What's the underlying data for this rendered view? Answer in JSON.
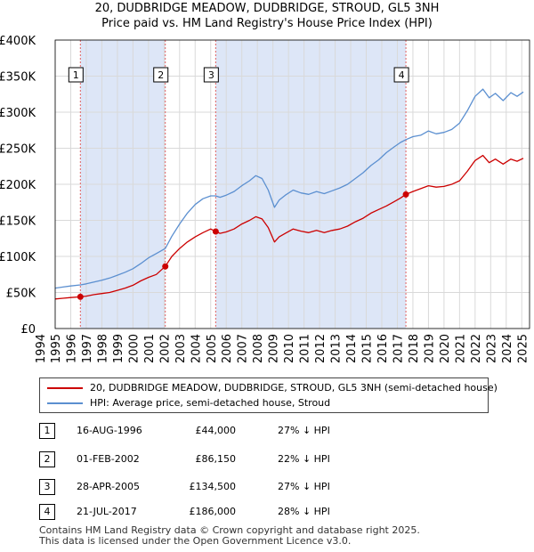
{
  "title_line1": "20, DUDBRIDGE MEADOW, DUDBRIDGE, STROUD, GL5 3NH",
  "title_line2": "Price paid vs. HM Land Registry's House Price Index (HPI)",
  "colors": {
    "property": "#cc0000",
    "hpi": "#5b8fd0",
    "shade": "#dde6f7",
    "marker_line": "#e06060"
  },
  "chart_data": {
    "type": "line",
    "title": "20, DUDBRIDGE MEADOW, DUDBRIDGE, STROUD, GL5 3NH — Price paid vs. HM Land Registry's House Price Index (HPI)",
    "xlim": [
      1995,
      2025.5
    ],
    "ylim": [
      0,
      400000
    ],
    "y_ticks": [
      0,
      50000,
      100000,
      150000,
      200000,
      250000,
      300000,
      350000,
      400000
    ],
    "y_tick_labels": [
      "£0",
      "£50K",
      "£100K",
      "£150K",
      "£200K",
      "£250K",
      "£300K",
      "£350K",
      "£400K"
    ],
    "x_ticks": [
      1994,
      1995,
      1996,
      1997,
      1998,
      1999,
      2000,
      2001,
      2002,
      2003,
      2004,
      2005,
      2006,
      2007,
      2008,
      2009,
      2010,
      2011,
      2012,
      2013,
      2014,
      2015,
      2016,
      2017,
      2018,
      2019,
      2020,
      2021,
      2022,
      2023,
      2024,
      2025
    ],
    "x_tick_labels": [
      "1994",
      "1995",
      "1996",
      "1997",
      "1998",
      "1999",
      "2000",
      "2001",
      "2002",
      "2003",
      "2004",
      "2005",
      "2006",
      "2007",
      "2008",
      "2009",
      "2010",
      "2011",
      "2012",
      "2013",
      "2014",
      "2015",
      "2016",
      "2017",
      "2018",
      "2019",
      "2020",
      "2021",
      "2022",
      "2023",
      "2024",
      "2025"
    ],
    "grid": true,
    "shaded_periods": [
      [
        1996.62,
        2002.08
      ],
      [
        2005.32,
        2017.55
      ]
    ],
    "series": [
      {
        "name": "20, DUDBRIDGE MEADOW, DUDBRIDGE, STROUD, GL5 3NH (semi-detached house)",
        "color": "#cc0000",
        "x": [
          1995.0,
          1995.5,
          1996.0,
          1996.62,
          1997.0,
          1997.5,
          1998.0,
          1998.5,
          1999.0,
          1999.5,
          2000.0,
          2000.5,
          2001.0,
          2001.5,
          2002.08,
          2002.5,
          2003.0,
          2003.5,
          2004.0,
          2004.5,
          2005.0,
          2005.32,
          2005.6,
          2006.0,
          2006.5,
          2007.0,
          2007.5,
          2007.9,
          2008.3,
          2008.7,
          2009.1,
          2009.4,
          2009.8,
          2010.3,
          2010.8,
          2011.3,
          2011.8,
          2012.3,
          2012.8,
          2013.3,
          2013.8,
          2014.3,
          2014.8,
          2015.3,
          2015.8,
          2016.3,
          2016.8,
          2017.2,
          2017.55,
          2018.0,
          2018.5,
          2019.0,
          2019.5,
          2020.0,
          2020.5,
          2021.0,
          2021.5,
          2022.0,
          2022.5,
          2022.9,
          2023.3,
          2023.8,
          2024.3,
          2024.7,
          2025.1
        ],
        "values": [
          41000,
          42000,
          43000,
          44000,
          45000,
          47000,
          48500,
          50000,
          53000,
          56000,
          60000,
          66000,
          71000,
          75000,
          86150,
          100000,
          111000,
          120000,
          127000,
          133000,
          138000,
          134500,
          132000,
          134000,
          138000,
          145000,
          150000,
          155000,
          152000,
          140000,
          120000,
          127000,
          132000,
          138000,
          135000,
          133000,
          136000,
          133000,
          136000,
          138000,
          142000,
          148000,
          153000,
          160000,
          165000,
          170000,
          176000,
          181000,
          186000,
          190000,
          194000,
          198000,
          196000,
          197000,
          200000,
          205000,
          218000,
          233000,
          240000,
          230000,
          235000,
          228000,
          235000,
          232000,
          236000
        ]
      },
      {
        "name": "HPI: Average price, semi-detached house, Stroud",
        "color": "#5b8fd0",
        "x": [
          1995.0,
          1995.5,
          1996.0,
          1996.62,
          1997.0,
          1997.5,
          1998.0,
          1998.5,
          1999.0,
          1999.5,
          2000.0,
          2000.5,
          2001.0,
          2001.5,
          2002.08,
          2002.5,
          2003.0,
          2003.5,
          2004.0,
          2004.5,
          2005.0,
          2005.32,
          2005.6,
          2006.0,
          2006.5,
          2007.0,
          2007.5,
          2007.9,
          2008.3,
          2008.7,
          2009.1,
          2009.4,
          2009.8,
          2010.3,
          2010.8,
          2011.3,
          2011.8,
          2012.3,
          2012.8,
          2013.3,
          2013.8,
          2014.3,
          2014.8,
          2015.3,
          2015.8,
          2016.3,
          2016.8,
          2017.2,
          2017.55,
          2018.0,
          2018.5,
          2019.0,
          2019.5,
          2020.0,
          2020.5,
          2021.0,
          2021.5,
          2022.0,
          2022.5,
          2022.9,
          2023.3,
          2023.8,
          2024.3,
          2024.7,
          2025.1
        ],
        "values": [
          56000,
          57500,
          59000,
          60500,
          62000,
          64500,
          67000,
          70000,
          74000,
          78000,
          83000,
          90000,
          98000,
          104000,
          111000,
          128000,
          145000,
          160000,
          172000,
          180000,
          184000,
          184000,
          182000,
          185000,
          190000,
          198000,
          205000,
          212000,
          208000,
          192000,
          168000,
          178000,
          185000,
          192000,
          188000,
          186000,
          190000,
          187000,
          191000,
          195000,
          200000,
          208000,
          216000,
          226000,
          234000,
          244000,
          252000,
          258000,
          262000,
          266000,
          268000,
          274000,
          270000,
          272000,
          276000,
          285000,
          302000,
          322000,
          332000,
          320000,
          326000,
          316000,
          327000,
          322000,
          328000
        ]
      }
    ],
    "sales": [
      {
        "id": "1",
        "date": "16-AUG-1996",
        "x": 1996.62,
        "price": 44000,
        "price_label": "£44,000",
        "hpi_diff": "27% ↓ HPI"
      },
      {
        "id": "2",
        "date": "01-FEB-2002",
        "x": 2002.08,
        "price": 86150,
        "price_label": "£86,150",
        "hpi_diff": "22% ↓ HPI"
      },
      {
        "id": "3",
        "date": "28-APR-2005",
        "x": 2005.32,
        "price": 134500,
        "price_label": "£134,500",
        "hpi_diff": "27% ↓ HPI"
      },
      {
        "id": "4",
        "date": "21-JUL-2017",
        "x": 2017.55,
        "price": 186000,
        "price_label": "£186,000",
        "hpi_diff": "28% ↓ HPI"
      }
    ]
  },
  "legend": {
    "property_label": "20, DUDBRIDGE MEADOW, DUDBRIDGE, STROUD, GL5 3NH (semi-detached house)",
    "hpi_label": "HPI: Average price, semi-detached house, Stroud"
  },
  "footer": {
    "line1": "Contains HM Land Registry data © Crown copyright and database right 2025.",
    "line2": "This data is licensed under the Open Government Licence v3.0."
  }
}
